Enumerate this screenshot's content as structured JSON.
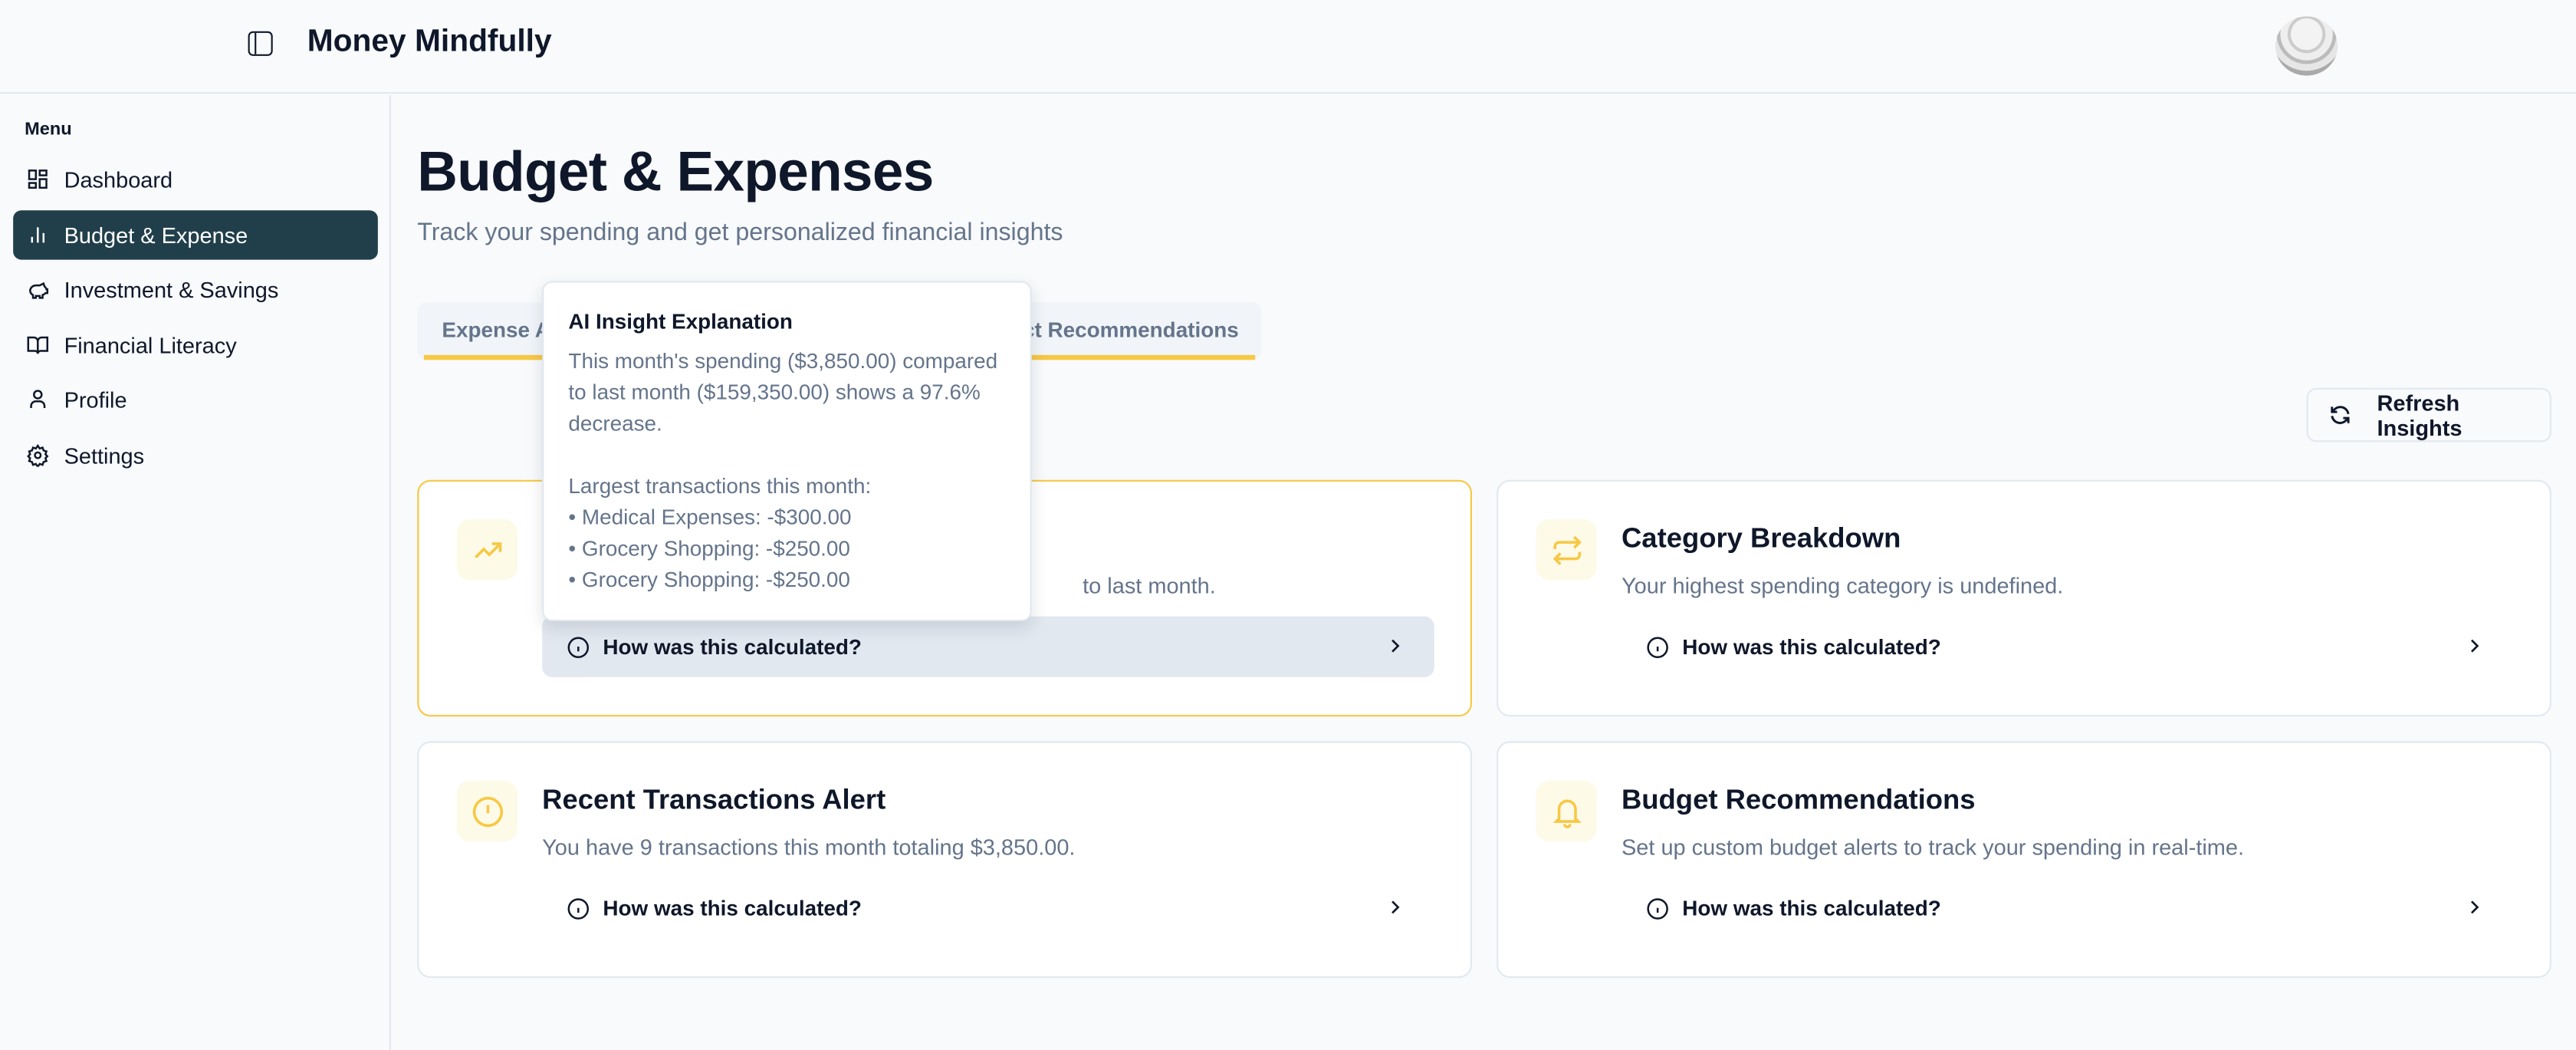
{
  "header": {
    "app_title": "Money Mindfully",
    "avatar_icon": "avatar-image"
  },
  "sidebar": {
    "menu_label": "Menu",
    "items": [
      {
        "label": "Dashboard",
        "icon": "dashboard-icon"
      },
      {
        "label": "Budget & Expense",
        "icon": "bar-chart-icon",
        "active": true
      },
      {
        "label": "Investment & Savings",
        "icon": "piggy-bank-icon"
      },
      {
        "label": "Financial Literacy",
        "icon": "book-icon"
      },
      {
        "label": "Profile",
        "icon": "user-icon"
      },
      {
        "label": "Settings",
        "icon": "gear-icon"
      }
    ]
  },
  "main": {
    "title": "Budget & Expenses",
    "subtitle": "Track your spending and get personalized financial insights",
    "tabs": [
      {
        "label": "Expense A"
      },
      {
        "label": ""
      },
      {
        "label": "ct Recommendations"
      }
    ],
    "refresh_label": "Refresh Insights",
    "cards": [
      {
        "title": "",
        "description": "to last month.",
        "how": "How was this calculated?",
        "icon": "trending-up-icon"
      },
      {
        "title": "Category Breakdown",
        "description": "Your highest spending category is undefined.",
        "how": "How was this calculated?",
        "icon": "arrows-exchange-icon"
      },
      {
        "title": "Recent Transactions Alert",
        "description": "You have 9 transactions this month totaling $3,850.00.",
        "how": "How was this calculated?",
        "icon": "alert-circle-icon"
      },
      {
        "title": "Budget Recommendations",
        "description": "Set up custom budget alerts to track your spending in real-time.",
        "how": "How was this calculated?",
        "icon": "bell-icon"
      }
    ]
  },
  "tooltip": {
    "title": "AI Insight Explanation",
    "lines": [
      "This month's spending ($3,850.00) compared",
      "to last month ($159,350.00) shows a 97.6%",
      "decrease.",
      "",
      "Largest transactions this month:",
      "• Medical Expenses: -$300.00",
      "• Grocery Shopping: -$250.00",
      "• Grocery Shopping: -$250.00"
    ]
  },
  "colors": {
    "accent": "#f7c843",
    "sidebar_active": "#213f4b",
    "muted_text": "#64748b",
    "hover_bg": "#e2e8f0"
  }
}
